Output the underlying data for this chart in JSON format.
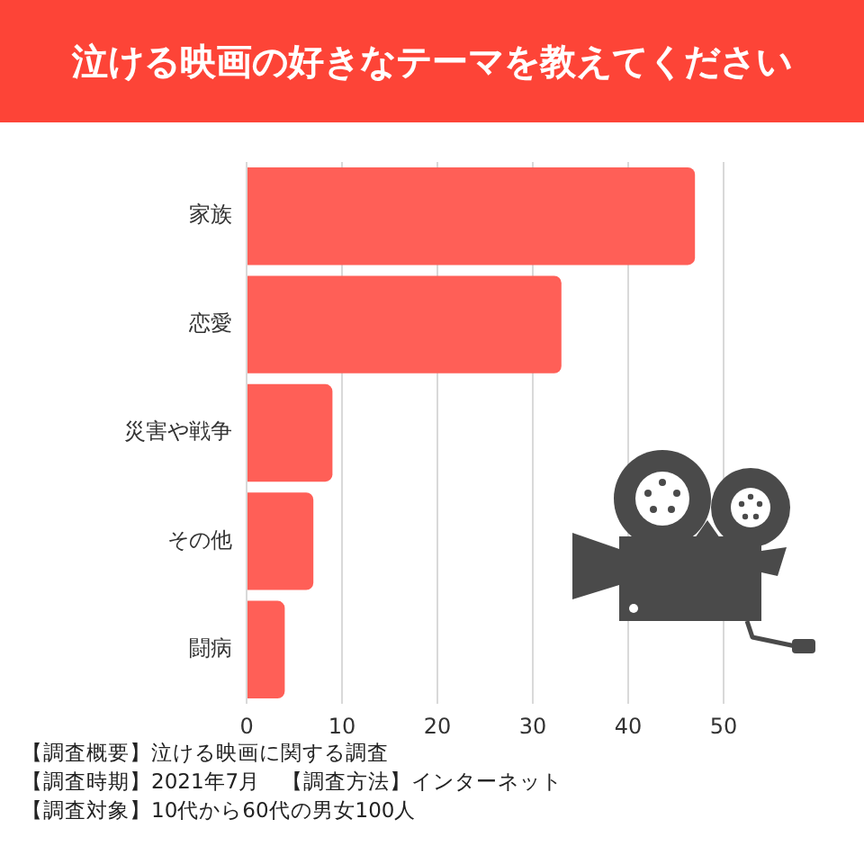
{
  "chart_data": {
    "type": "bar",
    "orientation": "horizontal",
    "title": "泣ける映画の好きなテーマを教えてください",
    "categories": [
      "家族",
      "恋愛",
      "災害や戦争",
      "その他",
      "闘病"
    ],
    "values": [
      47,
      33,
      9,
      7,
      4
    ],
    "color": "#ff5f57",
    "xlim": [
      0,
      50
    ],
    "xticks": [
      0,
      10,
      20,
      30,
      40,
      50
    ],
    "grid": "x",
    "annotations": [
      "【調査概要】泣ける映画に関する調査",
      "【調査時期】2021年7月　【調査方法】インターネット",
      "【調査対象】10代から60代の男女100人"
    ]
  }
}
